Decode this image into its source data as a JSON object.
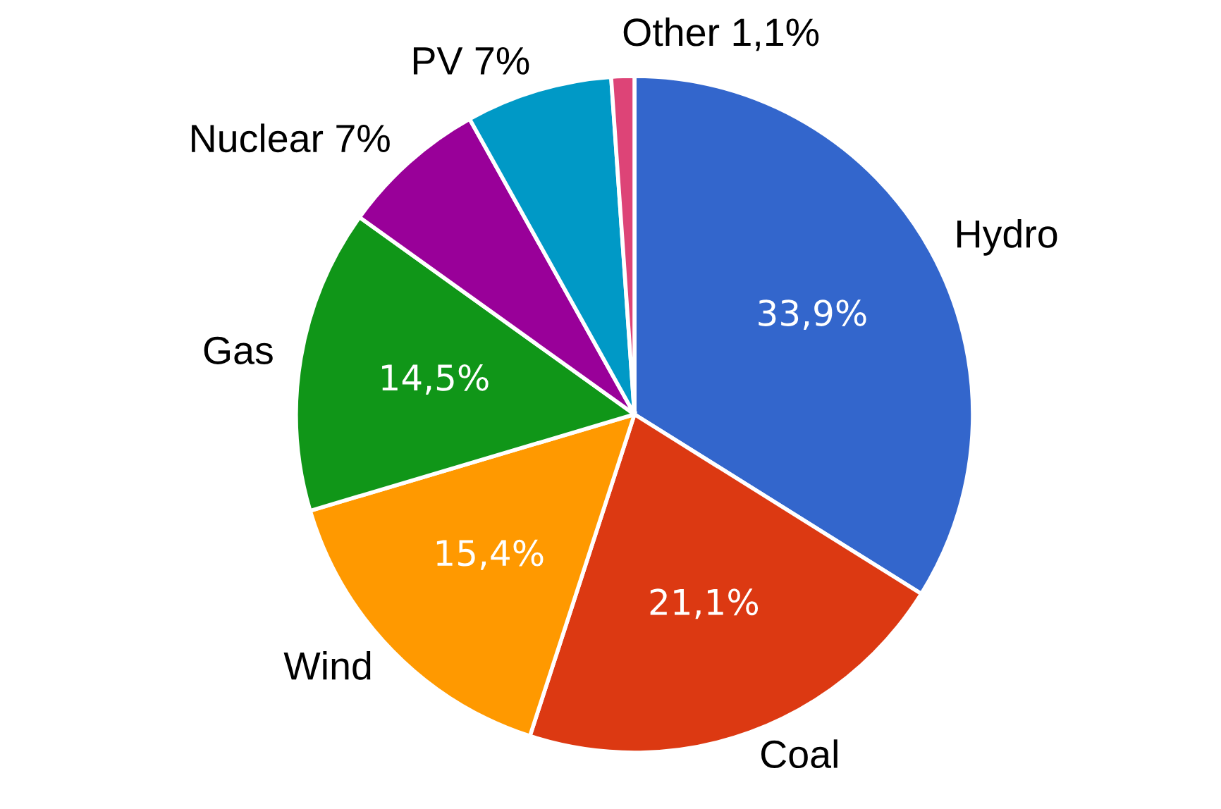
{
  "chart_data": {
    "type": "pie",
    "categories": [
      "Hydro",
      "Coal",
      "Wind",
      "Gas",
      "Nuclear 7%",
      "PV 7%",
      "Other 1,1%"
    ],
    "values": [
      33.9,
      21.1,
      15.4,
      14.5,
      7,
      7,
      1.1
    ],
    "colors": [
      "#3366cc",
      "#dc3912",
      "#ff9900",
      "#109618",
      "#990099",
      "#0099c6",
      "#dd4477"
    ],
    "value_labels": [
      "33,9%",
      "21,1%",
      "15,4%",
      "14,5%",
      null,
      null,
      null
    ]
  }
}
